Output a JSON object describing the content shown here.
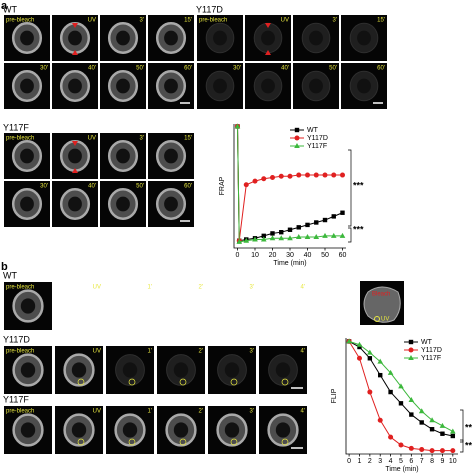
{
  "figure": {
    "panel_a": "a",
    "panel_b": "b"
  },
  "a": {
    "groups": [
      {
        "name": "WT",
        "labels": [
          "pre-bleach",
          "UV",
          "3'",
          "15'",
          "30'",
          "40'",
          "50'",
          "60'"
        ]
      },
      {
        "name": "Y117D",
        "labels": [
          "pre-bleach",
          "UV",
          "3'",
          "15'",
          "30'",
          "40'",
          "50'",
          "60'"
        ]
      },
      {
        "name": "Y117F",
        "labels": [
          "pre-bleach",
          "UV",
          "3'",
          "15'",
          "30'",
          "40'",
          "50'",
          "60'"
        ]
      }
    ]
  },
  "b": {
    "groups": [
      {
        "name": "WT",
        "labels": [
          "pre-bleach",
          "UV",
          "1'",
          "2'",
          "3'",
          "4'"
        ]
      },
      {
        "name": "Y117D",
        "labels": [
          "pre-bleach",
          "UV",
          "1'",
          "2'",
          "3'",
          "4'"
        ]
      },
      {
        "name": "Y117F",
        "labels": [
          "pre-bleach",
          "UV",
          "1'",
          "2'",
          "3'",
          "4'"
        ]
      }
    ],
    "inset": {
      "bleach": "Bleach",
      "uv": "UV"
    }
  },
  "chart_data": [
    {
      "type": "line",
      "x_label": "Time (min)",
      "y_label": "FRAP",
      "x": [
        0,
        1,
        5,
        10,
        15,
        20,
        25,
        30,
        35,
        40,
        45,
        50,
        55,
        60
      ],
      "xlim": [
        -2,
        62
      ],
      "xticks": [
        0,
        10,
        20,
        30,
        40,
        50,
        60
      ],
      "ylim": [
        0,
        1.02
      ],
      "series": [
        {
          "name": "WT",
          "color": "#000000",
          "marker": "square",
          "values": [
            1.0,
            0.06,
            0.07,
            0.08,
            0.1,
            0.12,
            0.13,
            0.15,
            0.17,
            0.19,
            0.21,
            0.23,
            0.26,
            0.29
          ]
        },
        {
          "name": "Y117D",
          "color": "#e02020",
          "marker": "circle",
          "values": [
            1.0,
            0.06,
            0.52,
            0.55,
            0.57,
            0.58,
            0.59,
            0.59,
            0.6,
            0.6,
            0.6,
            0.6,
            0.6,
            0.6
          ]
        },
        {
          "name": "Y117F",
          "color": "#3cb83c",
          "marker": "triangle",
          "values": [
            1.0,
            0.05,
            0.06,
            0.07,
            0.07,
            0.08,
            0.08,
            0.08,
            0.09,
            0.09,
            0.09,
            0.1,
            0.1,
            0.1
          ]
        }
      ],
      "annotations": [
        "***",
        "***"
      ]
    },
    {
      "type": "line",
      "x_label": "Time (min)",
      "y_label": "FLIP",
      "x": [
        0,
        1,
        2,
        3,
        4,
        5,
        6,
        7,
        8,
        9,
        10
      ],
      "xlim": [
        -0.3,
        10.5
      ],
      "xticks": [
        0,
        1,
        2,
        3,
        4,
        5,
        6,
        7,
        8,
        9,
        10
      ],
      "ylim": [
        0,
        1.03
      ],
      "series": [
        {
          "name": "WT",
          "color": "#000000",
          "marker": "square",
          "values": [
            1.0,
            0.95,
            0.85,
            0.7,
            0.55,
            0.45,
            0.35,
            0.28,
            0.22,
            0.18,
            0.16
          ]
        },
        {
          "name": "Y117D",
          "color": "#e02020",
          "marker": "circle",
          "values": [
            1.0,
            0.85,
            0.55,
            0.3,
            0.15,
            0.08,
            0.05,
            0.04,
            0.03,
            0.03,
            0.03
          ]
        },
        {
          "name": "Y117F",
          "color": "#3cb83c",
          "marker": "triangle",
          "values": [
            1.0,
            0.97,
            0.9,
            0.82,
            0.72,
            0.6,
            0.48,
            0.38,
            0.3,
            0.25,
            0.2
          ]
        }
      ],
      "annotations": [
        "**",
        "**"
      ]
    }
  ]
}
